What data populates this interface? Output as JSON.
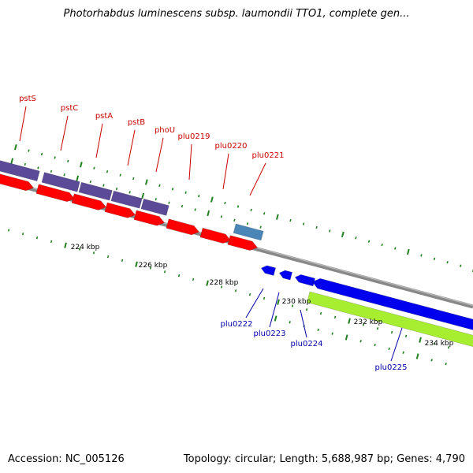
{
  "title": "Photorhabdus luminescens subsp. laumondii TTO1, complete gen...",
  "footer": {
    "accession_label": "Accession: NC_005126",
    "summary_label": "Topology: circular; Length: 5,688,987 bp; Genes: 4,790"
  },
  "colors": {
    "backbone": "#888888",
    "tick": "#208020",
    "forward_gene_label": "#cc0000",
    "reverse_gene_label": "#0000aa",
    "forward_cds": "#ff0000",
    "forward_gene": "#5a4a98",
    "rna_gene": "#4a86b8",
    "reverse_cds": "#0000ee",
    "reverse_gene": "#a8ee30"
  },
  "scale_labels": [
    "224 kbp",
    "226 kbp",
    "228 kbp",
    "230 kbp",
    "232 kbp",
    "234 kbp"
  ],
  "forward_genes": [
    {
      "label": "pstS"
    },
    {
      "label": "pstC"
    },
    {
      "label": "pstA"
    },
    {
      "label": "pstB"
    },
    {
      "label": "phoU"
    },
    {
      "label": "plu0219"
    },
    {
      "label": "plu0220"
    },
    {
      "label": "plu0221"
    }
  ],
  "reverse_genes": [
    {
      "label": "plu0222"
    },
    {
      "label": "plu0223"
    },
    {
      "label": "plu0224"
    },
    {
      "label": "plu0225"
    }
  ]
}
